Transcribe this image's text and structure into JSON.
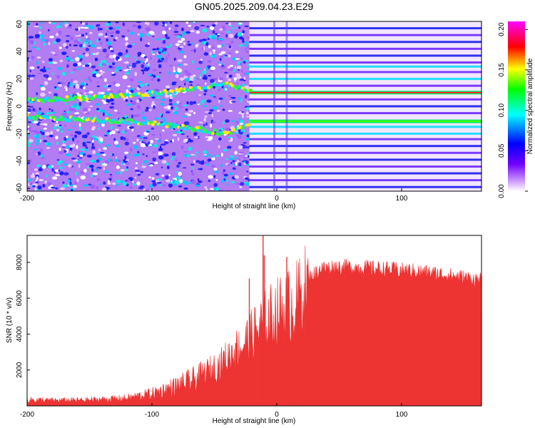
{
  "figure_title": "GN05.2025.209.04.23.E29",
  "chart_data": [
    {
      "type": "heatmap",
      "xlabel": "Height of straight line (km)",
      "ylabel": "Frequency (Hz)",
      "xlim": [
        -200,
        164
      ],
      "ylim": [
        -62,
        62
      ],
      "x_ticks": [
        -200,
        -100,
        0,
        100
      ],
      "y_ticks": [
        -60,
        -40,
        -20,
        0,
        20,
        40,
        60
      ],
      "colorbar": {
        "label": "Normalized spectral amplitude",
        "range": [
          0.0,
          0.21
        ],
        "ticks": [
          "0.00",
          "0.05",
          "0.10",
          "0.15",
          "0.20"
        ],
        "colormap": [
          "#ffffff",
          "#7000ff",
          "#0000ff",
          "#00ffff",
          "#00ff00",
          "#ffff00",
          "#ff0000",
          "#ff00ff"
        ]
      },
      "features": [
        {
          "description": "upper tone",
          "x": [
            -200,
            -100,
            -40,
            -20,
            164
          ],
          "frequency": [
            4,
            9,
            16,
            10,
            10
          ]
        },
        {
          "description": "lower tone",
          "x": [
            -200,
            -100,
            -40,
            -20,
            164
          ],
          "frequency": [
            -8,
            -12,
            -20,
            -11,
            -11
          ]
        },
        {
          "description": "horizontal bands (x > -22)",
          "frequency": [
            57,
            52,
            47,
            42,
            37,
            32,
            29,
            25,
            20,
            15,
            10,
            5,
            0,
            -5,
            -11,
            -15,
            -20,
            -24,
            -29,
            -34,
            -39,
            -44,
            -49,
            -54,
            -59
          ]
        }
      ]
    },
    {
      "type": "area",
      "xlabel": "Height of straight line (km)",
      "ylabel": "SNR (10 * v/v)",
      "xlim": [
        -200,
        164
      ],
      "ylim": [
        0,
        9500
      ],
      "x_ticks": [
        -200,
        -100,
        0,
        100
      ],
      "y_ticks": [
        2000,
        4000,
        6000,
        8000
      ],
      "color": "#ee3333",
      "envelope": {
        "x": [
          -200,
          -180,
          -150,
          -120,
          -100,
          -80,
          -60,
          -45,
          -35,
          -25,
          -15,
          -5,
          5,
          15,
          25,
          35,
          50,
          70,
          90,
          110,
          130,
          150,
          164
        ],
        "y": [
          400,
          350,
          380,
          500,
          800,
          1300,
          1900,
          2500,
          3200,
          3800,
          4600,
          5300,
          5800,
          6200,
          7200,
          7800,
          7900,
          7850,
          7750,
          7650,
          7500,
          7300,
          7150
        ]
      },
      "spikes": [
        {
          "x": -11,
          "y": 9500
        },
        {
          "x": -10,
          "y": 8400
        },
        {
          "x": 8,
          "y": 8300
        },
        {
          "x": -22,
          "y": 7100
        },
        {
          "x": -33,
          "y": 3500
        }
      ]
    }
  ]
}
